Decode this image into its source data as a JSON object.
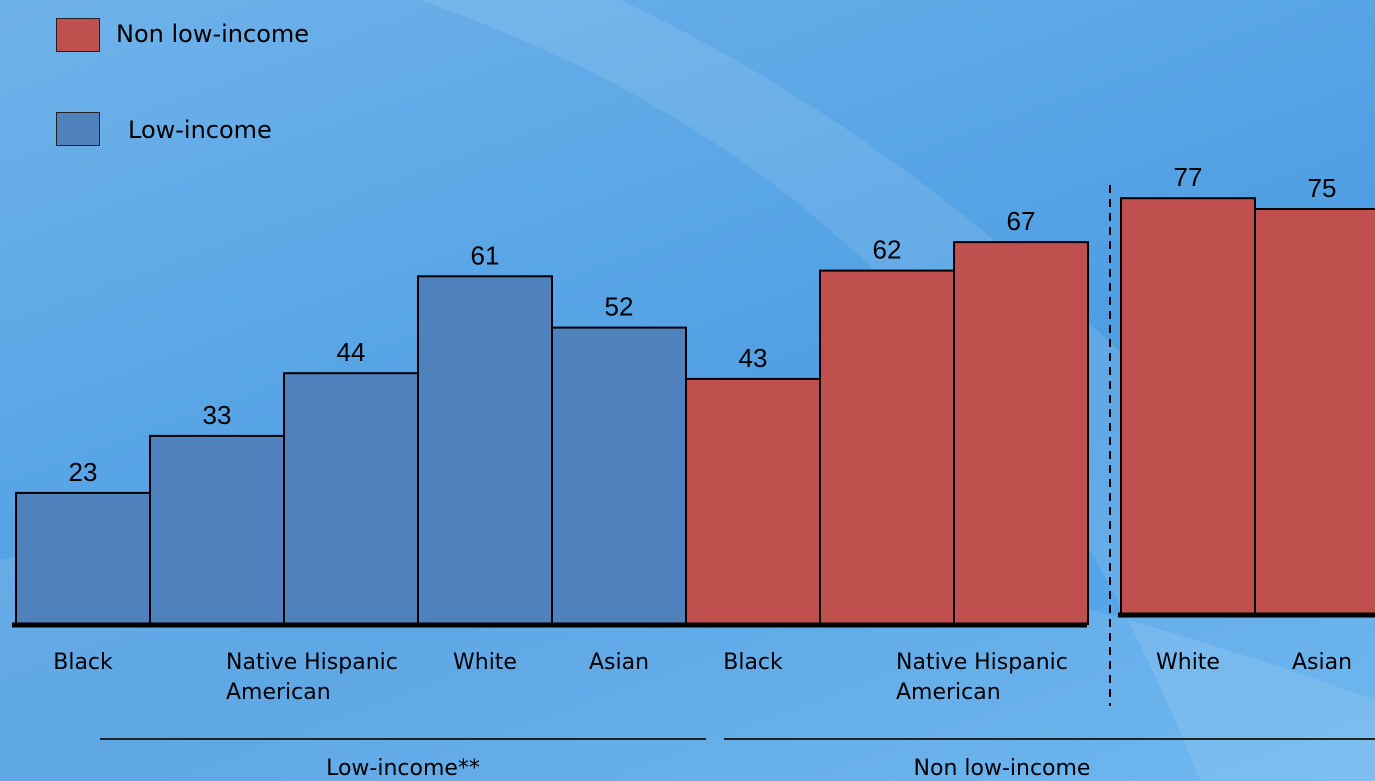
{
  "legend": [
    {
      "label": "Non low-income",
      "color": "#c0504d"
    },
    {
      "label": "Low-income",
      "color": "#4f81bd"
    }
  ],
  "group_labels": {
    "low_income": "Low-income**",
    "non_low_income": "Non low-income"
  },
  "chart_data": [
    {
      "type": "bar",
      "categories": [
        "Black",
        "Native American",
        "Hispanic",
        "White",
        "Asian",
        "Black",
        "Native American",
        "Hispanic"
      ],
      "values": [
        23,
        33,
        44,
        61,
        52,
        43,
        62,
        67
      ],
      "colors": [
        "#4f81bd",
        "#4f81bd",
        "#4f81bd",
        "#4f81bd",
        "#4f81bd",
        "#c0504d",
        "#c0504d",
        "#c0504d"
      ]
    },
    {
      "type": "bar",
      "categories": [
        "White",
        "Asian"
      ],
      "values": [
        77,
        75
      ],
      "colors": [
        "#c0504d",
        "#c0504d"
      ]
    }
  ]
}
